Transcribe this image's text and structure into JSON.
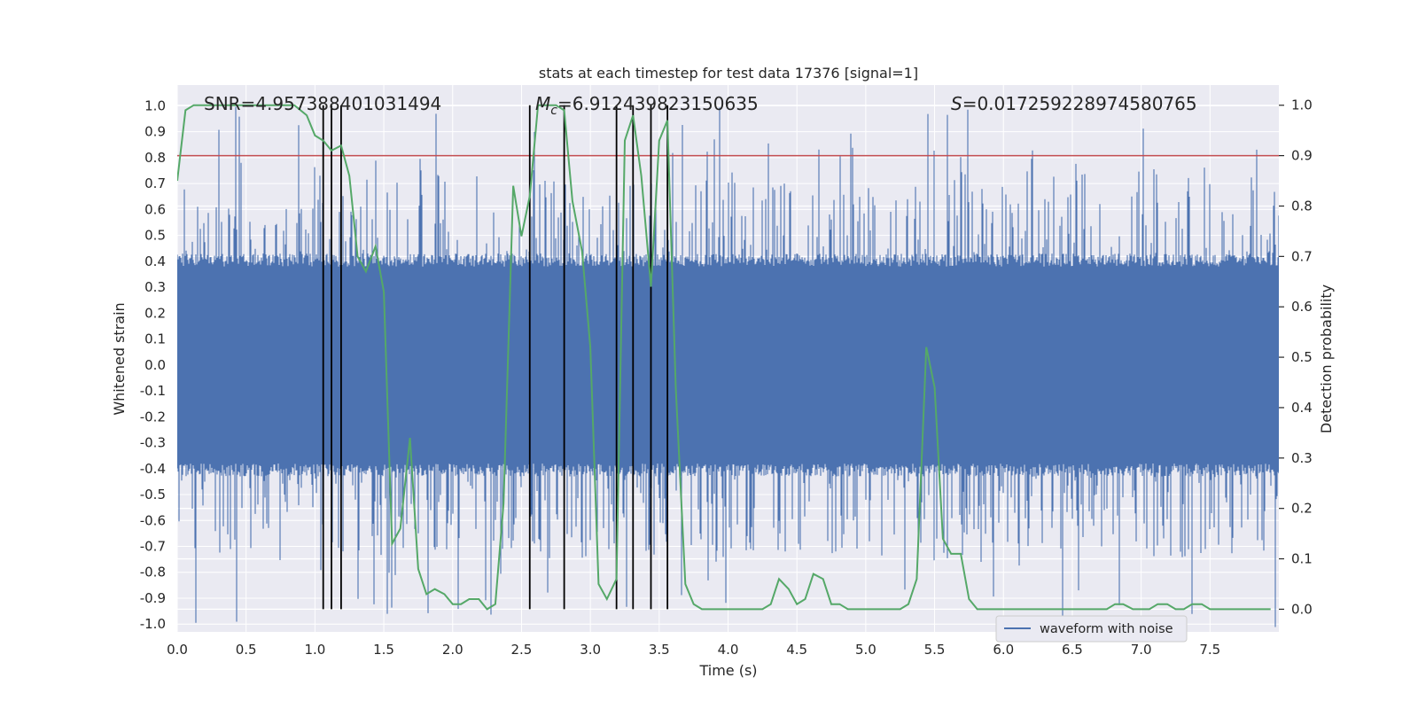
{
  "chart_data": {
    "type": "line",
    "title": "stats at each timestep for test data 17376 [signal=1]",
    "xlabel": "Time (s)",
    "ylabel_left": "Whitened strain",
    "ylabel_right": "Detection probability",
    "xlim": [
      0.0,
      8.0
    ],
    "ylim_left": [
      -1.03,
      1.08
    ],
    "ylim_right": [
      -0.045,
      1.04
    ],
    "x_ticks": [
      "0.0",
      "0.5",
      "1.0",
      "1.5",
      "2.0",
      "2.5",
      "3.0",
      "3.5",
      "4.0",
      "4.5",
      "5.0",
      "5.5",
      "6.0",
      "6.5",
      "7.0",
      "7.5"
    ],
    "y_ticks_left": [
      "1.0",
      "0.9",
      "0.8",
      "0.7",
      "0.6",
      "0.5",
      "0.4",
      "0.3",
      "0.2",
      "0.1",
      "0.0",
      "-0.1",
      "-0.2",
      "-0.3",
      "-0.4",
      "-0.5",
      "-0.6",
      "-0.7",
      "-0.8",
      "-0.9",
      "-1.0"
    ],
    "y_ticks_right": [
      "1.0",
      "0.9",
      "0.8",
      "0.7",
      "0.6",
      "0.5",
      "0.4",
      "0.3",
      "0.2",
      "0.1",
      "0.0"
    ],
    "annotations": {
      "snr": "SNR=4.957388401031494",
      "mc_symbol": "M",
      "mc_sub": "c",
      "mc_value": "=6.912439823150635",
      "s_symbol": "S",
      "s_value": "=0.017259228974580765"
    },
    "threshold": {
      "axis": "right",
      "value": 0.9,
      "color": "#c44e52"
    },
    "detection_markers_x": [
      1.06,
      1.12,
      1.19,
      2.56,
      2.81,
      3.19,
      3.31,
      3.44,
      3.56
    ],
    "waveform_envelope": {
      "name": "waveform with noise",
      "color": "#4c72b0",
      "typical_abs": 0.38,
      "max_abs": 0.98
    },
    "series": [
      {
        "name": "detection probability",
        "axis": "right",
        "color": "#55a868",
        "points": [
          [
            0.0,
            0.85
          ],
          [
            0.06,
            0.99
          ],
          [
            0.12,
            1.0
          ],
          [
            0.3,
            1.0
          ],
          [
            0.6,
            1.0
          ],
          [
            0.85,
            1.0
          ],
          [
            0.94,
            0.98
          ],
          [
            1.0,
            0.94
          ],
          [
            1.06,
            0.93
          ],
          [
            1.12,
            0.91
          ],
          [
            1.19,
            0.92
          ],
          [
            1.25,
            0.86
          ],
          [
            1.31,
            0.7
          ],
          [
            1.37,
            0.67
          ],
          [
            1.44,
            0.72
          ],
          [
            1.5,
            0.63
          ],
          [
            1.56,
            0.13
          ],
          [
            1.62,
            0.16
          ],
          [
            1.69,
            0.34
          ],
          [
            1.75,
            0.08
          ],
          [
            1.81,
            0.03
          ],
          [
            1.87,
            0.04
          ],
          [
            1.94,
            0.03
          ],
          [
            2.0,
            0.01
          ],
          [
            2.06,
            0.01
          ],
          [
            2.12,
            0.02
          ],
          [
            2.19,
            0.02
          ],
          [
            2.25,
            0.0
          ],
          [
            2.31,
            0.01
          ],
          [
            2.37,
            0.21
          ],
          [
            2.44,
            0.84
          ],
          [
            2.5,
            0.74
          ],
          [
            2.56,
            0.82
          ],
          [
            2.62,
            1.0
          ],
          [
            2.69,
            1.0
          ],
          [
            2.75,
            1.0
          ],
          [
            2.81,
            0.99
          ],
          [
            2.87,
            0.81
          ],
          [
            2.94,
            0.71
          ],
          [
            3.0,
            0.52
          ],
          [
            3.06,
            0.05
          ],
          [
            3.12,
            0.02
          ],
          [
            3.19,
            0.06
          ],
          [
            3.25,
            0.93
          ],
          [
            3.31,
            0.98
          ],
          [
            3.37,
            0.86
          ],
          [
            3.44,
            0.64
          ],
          [
            3.5,
            0.93
          ],
          [
            3.56,
            0.97
          ],
          [
            3.62,
            0.44
          ],
          [
            3.69,
            0.05
          ],
          [
            3.75,
            0.01
          ],
          [
            3.81,
            0.0
          ],
          [
            3.87,
            0.0
          ],
          [
            4.0,
            0.0
          ],
          [
            4.25,
            0.0
          ],
          [
            4.31,
            0.01
          ],
          [
            4.37,
            0.06
          ],
          [
            4.44,
            0.04
          ],
          [
            4.5,
            0.01
          ],
          [
            4.56,
            0.02
          ],
          [
            4.62,
            0.07
          ],
          [
            4.69,
            0.06
          ],
          [
            4.75,
            0.01
          ],
          [
            4.81,
            0.01
          ],
          [
            4.87,
            0.0
          ],
          [
            5.0,
            0.0
          ],
          [
            5.25,
            0.0
          ],
          [
            5.31,
            0.01
          ],
          [
            5.37,
            0.06
          ],
          [
            5.44,
            0.52
          ],
          [
            5.5,
            0.44
          ],
          [
            5.56,
            0.14
          ],
          [
            5.62,
            0.11
          ],
          [
            5.69,
            0.11
          ],
          [
            5.75,
            0.02
          ],
          [
            5.81,
            0.0
          ],
          [
            6.0,
            0.0
          ],
          [
            6.3,
            0.0
          ],
          [
            6.4,
            0.0
          ],
          [
            6.5,
            0.0
          ],
          [
            6.75,
            0.0
          ],
          [
            6.81,
            0.01
          ],
          [
            6.87,
            0.01
          ],
          [
            6.94,
            0.0
          ],
          [
            7.0,
            0.0
          ],
          [
            7.06,
            0.0
          ],
          [
            7.12,
            0.01
          ],
          [
            7.19,
            0.01
          ],
          [
            7.25,
            0.0
          ],
          [
            7.31,
            0.0
          ],
          [
            7.37,
            0.01
          ],
          [
            7.44,
            0.01
          ],
          [
            7.5,
            0.0
          ],
          [
            7.6,
            0.0
          ],
          [
            7.94,
            0.0
          ]
        ]
      }
    ],
    "legend": [
      {
        "label": "waveform with noise",
        "color": "#4c72b0"
      }
    ],
    "legend_position": "bottom-right",
    "grid": true
  }
}
